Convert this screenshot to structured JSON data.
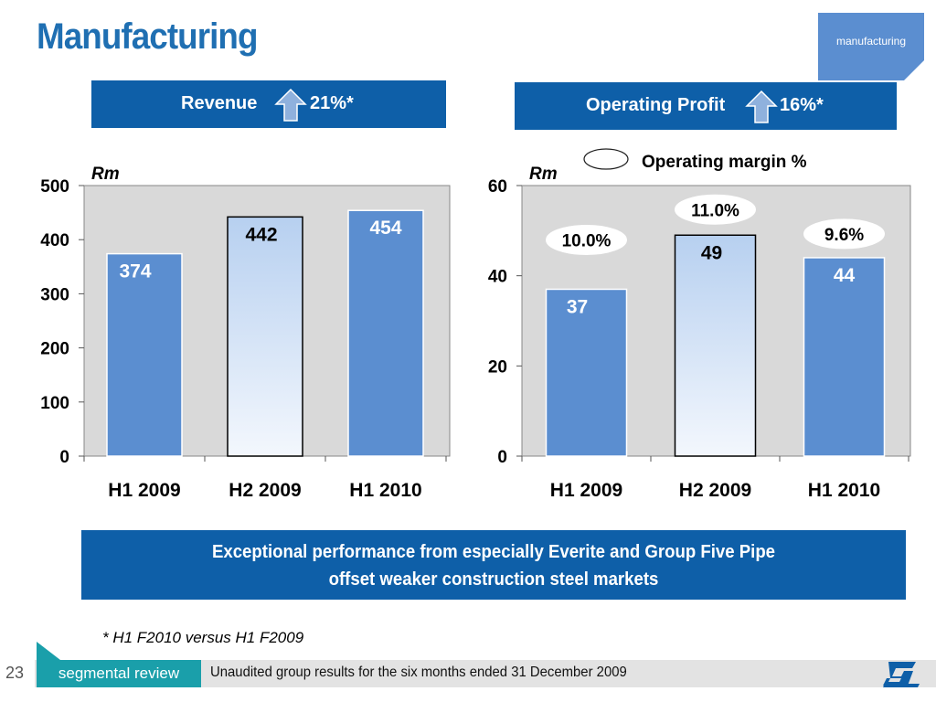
{
  "page": {
    "title": "Manufacturing",
    "tag": "manufacturing",
    "revenue_header": {
      "label": "Revenue",
      "change": "21%*"
    },
    "profit_header": {
      "label": "Operating Profit",
      "change": "16%*"
    },
    "legend_label": "Operating margin %",
    "summary_line1": "Exceptional performance from especially Everite and Group Five Pipe",
    "summary_line2": "offset weaker construction steel markets",
    "footnote": "* H1 F2010 versus H1 F2009",
    "page_number": "23",
    "section": "segmental review",
    "footer": "Unaudited group results for the six months ended 31 December 2009",
    "colors": {
      "brand_blue": "#0e5fa8",
      "bar_solid": "#5b8ed0",
      "bar_light_top": "#b7d0f0",
      "plot_bg": "#d9d9d9",
      "teal": "#1a9faa"
    },
    "icons": [
      "up-arrow-icon",
      "company-logo-icon"
    ]
  },
  "chart_data": [
    {
      "type": "bar",
      "categories": [
        "H1 2009",
        "H2 2009",
        "H1 2010"
      ],
      "values": [
        374,
        442,
        454
      ],
      "data_labels": [
        "374",
        "442",
        "454"
      ],
      "ylabel": "Rm",
      "ylim": [
        0,
        500
      ],
      "yticks": [
        0,
        100,
        200,
        300,
        400,
        500
      ],
      "ytick_labels": [
        "0",
        "100",
        "200",
        "300",
        "400",
        "500"
      ],
      "grid": false,
      "bar_styles": [
        "solid",
        "gradient",
        "solid"
      ]
    },
    {
      "type": "bar",
      "categories": [
        "H1 2009",
        "H2 2009",
        "H1 2010"
      ],
      "values": [
        37,
        49,
        44
      ],
      "data_labels": [
        "37",
        "49",
        "44"
      ],
      "margins": [
        "10.0%",
        "11.0%",
        "9.6%"
      ],
      "ylabel": "Rm",
      "ylim": [
        0,
        60
      ],
      "yticks": [
        0,
        20,
        40,
        60
      ],
      "ytick_labels": [
        "0",
        "20",
        "40",
        "60"
      ],
      "grid": false,
      "bar_styles": [
        "solid",
        "gradient",
        "solid"
      ]
    }
  ]
}
